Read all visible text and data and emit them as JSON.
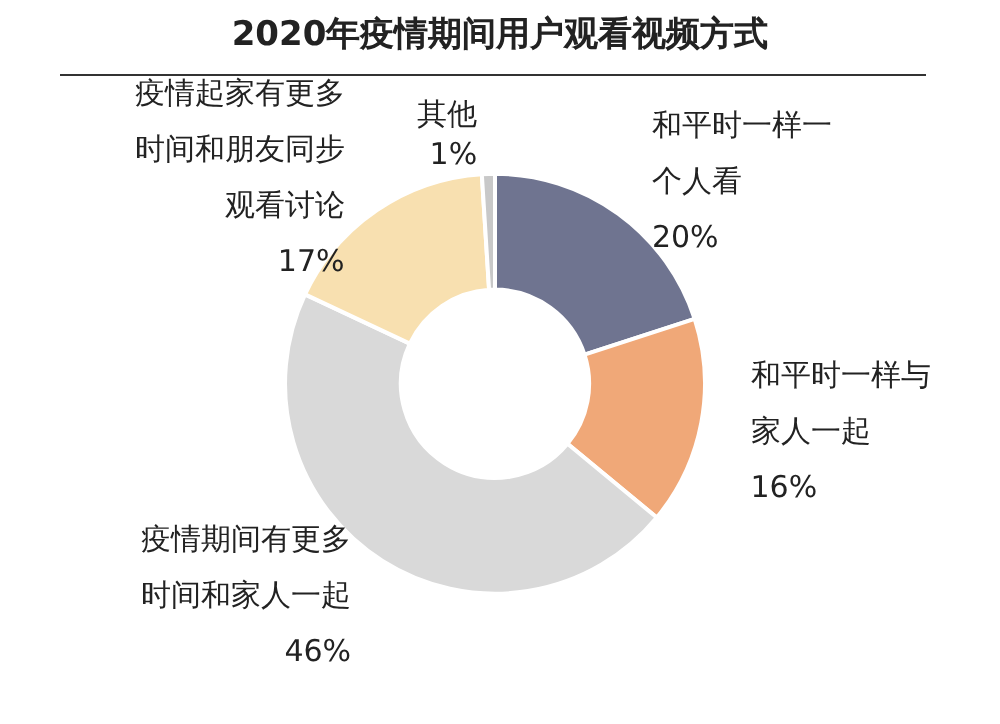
{
  "chart_data": {
    "type": "donut",
    "title": "2020年疫情期间用户观看视频方式",
    "categories": [
      "和平时一样一个人看",
      "和平时一样与家人一起",
      "疫情期间有更多时间和家人一起",
      "疫情起家有更多时间和朋友同步观看讨论",
      "其他"
    ],
    "values": [
      20,
      16,
      46,
      17,
      1
    ],
    "colors": [
      "#6f7490",
      "#f0a878",
      "#d9d9d9",
      "#f8e0b0",
      "#c8c8c8"
    ],
    "value_labels": [
      "20%",
      "16%",
      "46%",
      "17%",
      "1%"
    ],
    "legend": false
  }
}
